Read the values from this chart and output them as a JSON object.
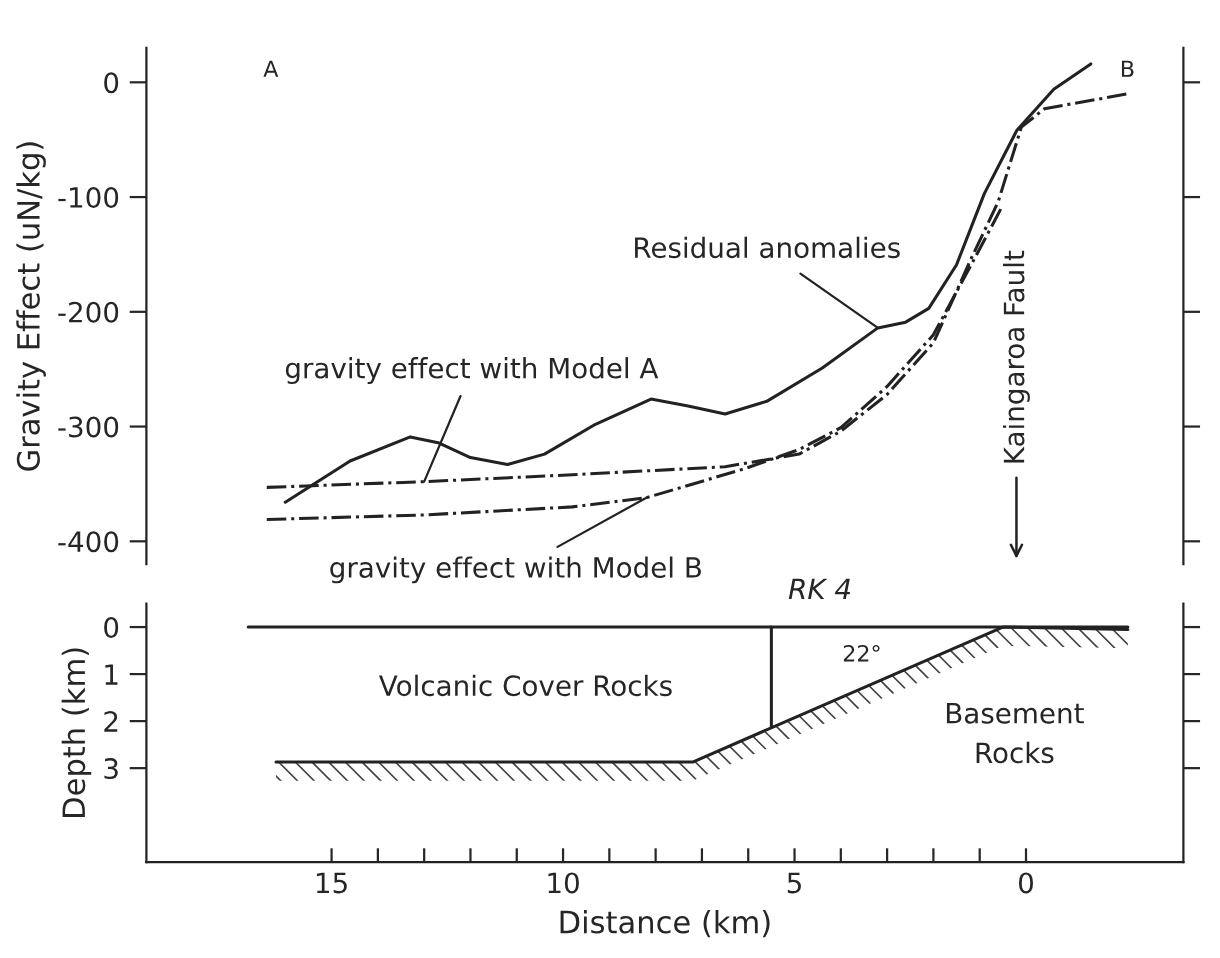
{
  "chart_data": [
    {
      "type": "line",
      "ylabel": "Gravity Effect (uN/kg)",
      "xlim": [
        19,
        -3.4
      ],
      "ylim": [
        -420,
        30
      ],
      "yticks": [
        0,
        -100,
        -200,
        -300,
        -400
      ],
      "tick_labels": "y",
      "grid": false,
      "series": [
        {
          "color": "#222222",
          "line_style": "solid",
          "x": [
            16.0,
            14.6,
            13.3,
            12.7,
            12.0,
            11.2,
            10.4,
            9.3,
            8.1,
            7.3,
            6.5,
            5.6,
            4.4,
            3.2,
            2.6,
            2.1,
            1.5,
            0.9,
            0.2,
            -0.6,
            -1.4
          ],
          "values": [
            -366,
            -330,
            -309,
            -314,
            -327,
            -333,
            -324,
            -298,
            -276,
            -282,
            -289,
            -278,
            -249,
            -214,
            -209,
            -197,
            -159,
            -97,
            -42,
            -6,
            16
          ]
        },
        {
          "color": "#222222",
          "line_style": "dashdot",
          "x": [
            16.4,
            13.0,
            9.8,
            6.5,
            4.9,
            4.0,
            3.0,
            2.0,
            1.2,
            0.6,
            0.1,
            -0.4,
            -2.2
          ],
          "values": [
            -353,
            -348,
            -342,
            -335,
            -324,
            -304,
            -272,
            -227,
            -155,
            -104,
            -39,
            -23,
            -10
          ]
        },
        {
          "color": "#222222",
          "line_style": "dashdot",
          "x": [
            16.4,
            13.0,
            9.8,
            8.2,
            6.1,
            4.9,
            4.0,
            3.0,
            2.0,
            1.05,
            0.5
          ],
          "values": [
            -381,
            -377,
            -370,
            -362,
            -337,
            -320,
            -301,
            -265,
            -220,
            -149,
            -107
          ]
        }
      ],
      "annotations": [
        "A",
        "B",
        "Kaingaroa Fault",
        {
          "text": "Residual anomalies",
          "x": 3.2,
          "y": -214
        },
        {
          "text": "gravity effect with Model A",
          "x": 13.0,
          "y": -348
        },
        {
          "text": "gravity effect with Model B",
          "x": 8.2,
          "y": -362
        }
      ]
    },
    {
      "type": "line",
      "ylabel": "Depth (km)",
      "xlabel": "Distance (km)",
      "xlim": [
        19,
        -3.4
      ],
      "ylim": [
        5.0,
        -0.5
      ],
      "yticks": [
        0,
        1,
        2,
        3
      ],
      "xticks": [
        15,
        {
          "value": 14,
          "label": null
        },
        {
          "value": 13,
          "label": null
        },
        {
          "value": 12,
          "label": null
        },
        {
          "value": 11,
          "label": null
        },
        10,
        {
          "value": 9,
          "label": null
        },
        {
          "value": 8,
          "label": null
        },
        {
          "value": 7,
          "label": null
        },
        {
          "value": 6,
          "label": null
        },
        5,
        {
          "value": 4,
          "label": null
        },
        {
          "value": 3,
          "label": null
        },
        {
          "value": 2,
          "label": null
        },
        {
          "value": 1,
          "label": null
        },
        0
      ],
      "grid": false,
      "series": [
        {
          "color": "#222222",
          "line_style": "solid",
          "x": [
            16.8,
            -2.2
          ],
          "values": [
            0,
            0
          ]
        },
        {
          "color": "#222222",
          "line_style": "solid",
          "x": [
            16.2,
            7.2,
            0.5,
            -2.2
          ],
          "values": [
            2.87,
            2.87,
            0,
            0.05
          ]
        },
        {
          "color": "#222222",
          "line_style": "solid",
          "x": [
            5.5,
            5.5
          ],
          "values": [
            0,
            2.12
          ]
        }
      ],
      "annotations": [
        {
          "text": "RK 4",
          "x": 5.5,
          "y": 0
        },
        "22°",
        "Volcanic Cover Rocks",
        "Basement\nRocks"
      ]
    }
  ]
}
